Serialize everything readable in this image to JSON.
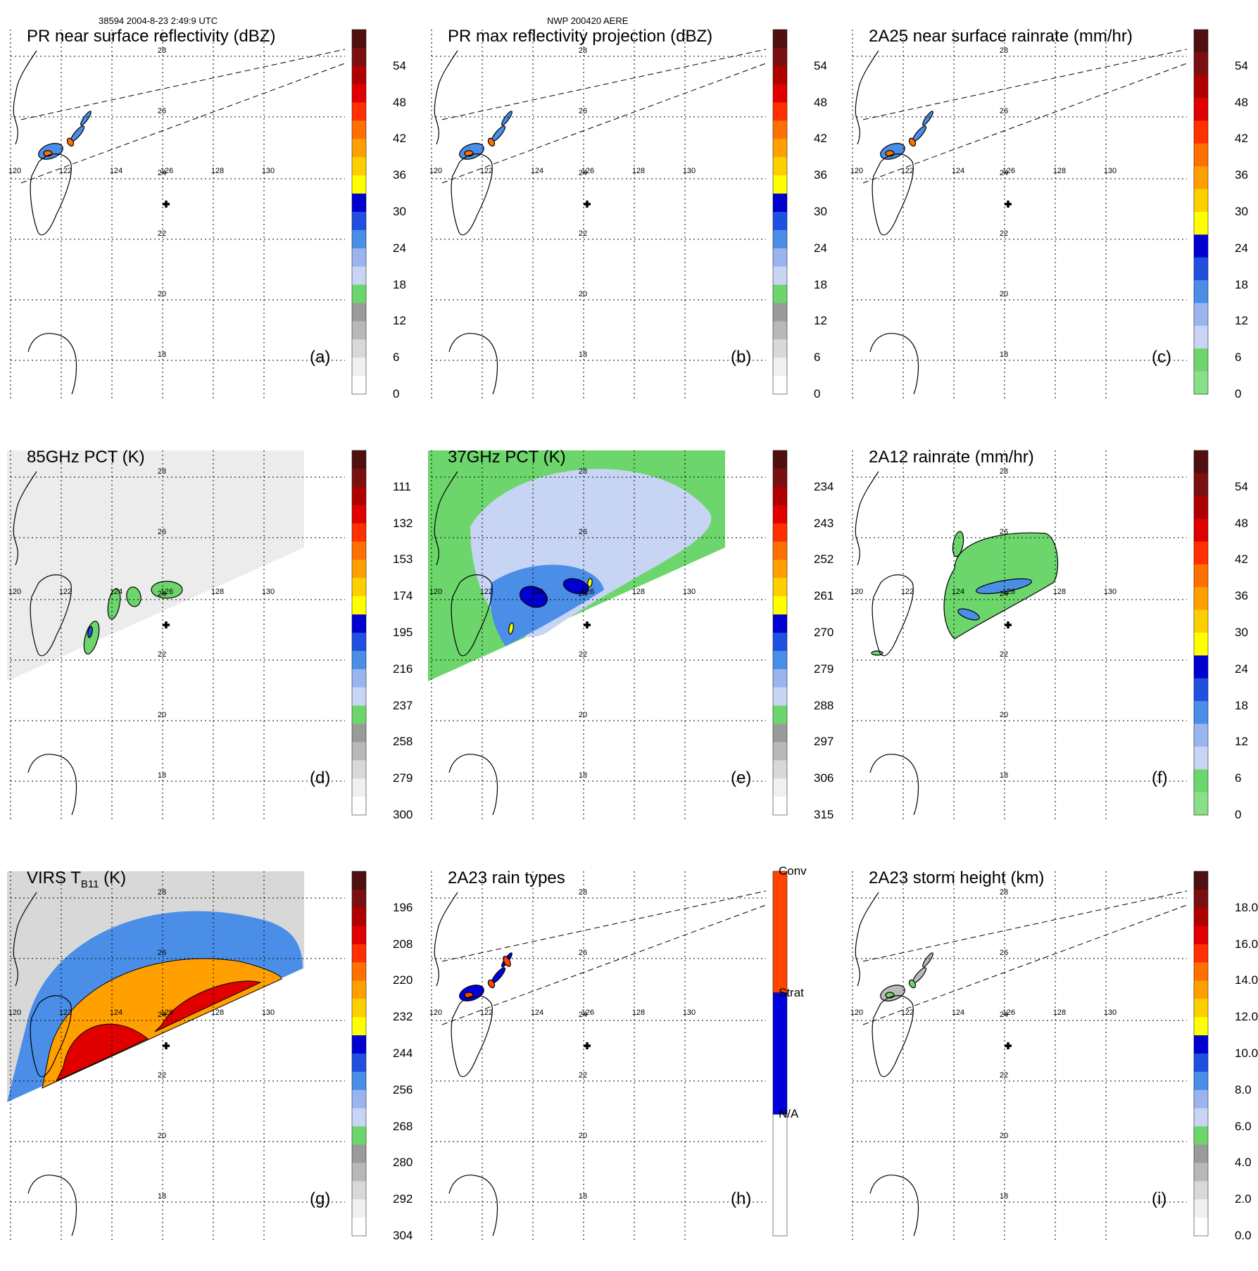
{
  "header": {
    "left": "38594 2004-8-23 2:49:9 UTC",
    "center": "NWP 200420 AERE"
  },
  "map": {
    "lon_ticks": [
      "120",
      "122",
      "124",
      "126",
      "128",
      "130"
    ],
    "lat_ticks": [
      "28",
      "26",
      "24",
      "22",
      "20",
      "18"
    ],
    "center_marker": "storm-center-cross"
  },
  "panels": [
    {
      "id": "a",
      "title": "PR near surface reflectivity (dBZ)",
      "label": "(a)",
      "colorbar_ticks": [
        "54",
        "48",
        "42",
        "36",
        "30",
        "24",
        "18",
        "12",
        "6",
        "0"
      ],
      "field": "pr_swath"
    },
    {
      "id": "b",
      "title": "PR max reflectivity projection (dBZ)",
      "label": "(b)",
      "colorbar_ticks": [
        "54",
        "48",
        "42",
        "36",
        "30",
        "24",
        "18",
        "12",
        "6",
        "0"
      ],
      "field": "pr_swath"
    },
    {
      "id": "c",
      "title": "2A25 near surface rainrate (mm/hr)",
      "label": "(c)",
      "colorbar_ticks": [
        "54",
        "48",
        "42",
        "36",
        "30",
        "24",
        "18",
        "12",
        "6",
        "0"
      ],
      "field": "pr_swath"
    },
    {
      "id": "d",
      "title": "85GHz PCT (K)",
      "label": "(d)",
      "colorbar_ticks": [
        "111",
        "132",
        "153",
        "174",
        "195",
        "216",
        "237",
        "258",
        "279",
        "300"
      ],
      "field": "tmi_85"
    },
    {
      "id": "e",
      "title": "37GHz PCT (K)",
      "label": "(e)",
      "colorbar_ticks": [
        "234",
        "243",
        "252",
        "261",
        "270",
        "279",
        "288",
        "297",
        "306",
        "315"
      ],
      "field": "tmi_37"
    },
    {
      "id": "f",
      "title": "2A12 rainrate (mm/hr)",
      "label": "(f)",
      "colorbar_ticks": [
        "54",
        "48",
        "42",
        "36",
        "30",
        "24",
        "18",
        "12",
        "6",
        "0"
      ],
      "field": "tmi_rain"
    },
    {
      "id": "g",
      "title": "VIRS T",
      "title_sub": "B11",
      "title_suffix": "(K)",
      "label": "(g)",
      "colorbar_ticks": [
        "196",
        "208",
        "220",
        "232",
        "244",
        "256",
        "268",
        "280",
        "292",
        "304"
      ],
      "field": "virs"
    },
    {
      "id": "h",
      "title": "2A23 rain types",
      "label": "(h)",
      "colorbar_ticks": [
        "Conv",
        "Strat",
        "N/A"
      ],
      "field": "pr_swath_types"
    },
    {
      "id": "i",
      "title": "2A23 storm height (km)",
      "label": "(i)",
      "colorbar_ticks": [
        "18.0",
        "16.0",
        "14.0",
        "12.0",
        "10.0",
        "8.0",
        "6.0",
        "4.0",
        "2.0",
        "0.0"
      ],
      "field": "pr_swath_height"
    }
  ],
  "colorscales": {
    "dbz": [
      "#ffffff",
      "#f0f0f0",
      "#d8d8d8",
      "#b8b8b8",
      "#9a9a9a",
      "#6cd66c",
      "#c8d4f4",
      "#9ab4f0",
      "#4a8ee8",
      "#2050e0",
      "#0000d0",
      "#ffff00",
      "#ffd000",
      "#ffa000",
      "#ff7000",
      "#ff3000",
      "#e00000",
      "#b00000",
      "#7a1010",
      "#501010"
    ],
    "rain": [
      "#88e088",
      "#6cd66c",
      "#c8d4f4",
      "#9ab4f0",
      "#4a8ee8",
      "#2050e0",
      "#0000d0",
      "#ffff00",
      "#ffd000",
      "#ffa000",
      "#ff7000",
      "#ff3000",
      "#e00000",
      "#b00000",
      "#7a1010",
      "#501010"
    ],
    "types": [
      "#ffffff",
      "#0000dd",
      "#ff4400"
    ]
  }
}
